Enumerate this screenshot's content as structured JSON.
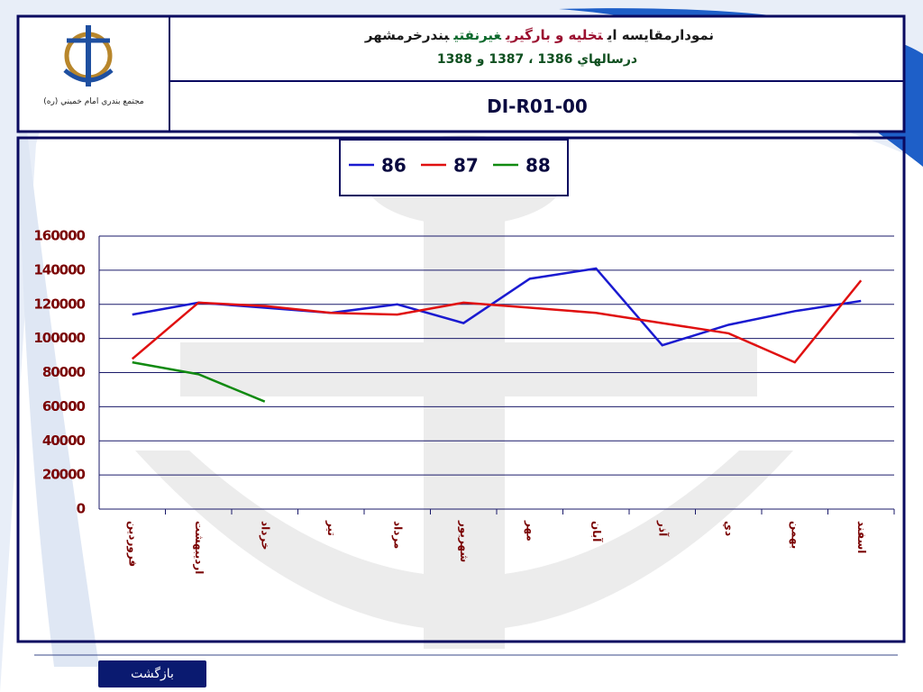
{
  "header": {
    "organization": "مجتمع بندري امام خميني (ره)",
    "title_segments": [
      {
        "text": "نمودارمقايسه اي",
        "color": "#1a1a1a"
      },
      {
        "text": "تخليه و بارگيري",
        "color": "#9b1030"
      },
      {
        "text": "غيرنفتي",
        "color": "#0f6b2f"
      },
      {
        "text": "بندرخرمشهر",
        "color": "#1a1a1a"
      }
    ],
    "subtitle": "درسالهاي 1386 ، 1387 و 1388",
    "code": "DI-R01-00"
  },
  "chart_data": {
    "type": "line",
    "categories": [
      "فروردين",
      "ارديبهشت",
      "خرداد",
      "تير",
      "مرداد",
      "شهريور",
      "مهر",
      "آبان",
      "آذر",
      "دي",
      "بهمن",
      "اسفند"
    ],
    "series": [
      {
        "name": "86",
        "color": "#1a1ad0",
        "values": [
          114000,
          121000,
          118000,
          115000,
          120000,
          109000,
          135000,
          141000,
          96000,
          108000,
          116000,
          122000
        ]
      },
      {
        "name": "87",
        "color": "#e01010",
        "values": [
          88000,
          121000,
          119000,
          115000,
          114000,
          121000,
          118000,
          115000,
          109000,
          103000,
          86000,
          134000
        ]
      },
      {
        "name": "88",
        "color": "#118a11",
        "values": [
          86000,
          79000,
          63000,
          null,
          null,
          null,
          null,
          null,
          null,
          null,
          null,
          null
        ]
      }
    ],
    "ylim": [
      0,
      160000
    ],
    "yticks": [
      0,
      20000,
      40000,
      60000,
      80000,
      100000,
      120000,
      140000,
      160000
    ],
    "grid": true
  },
  "footer": {
    "back_button": "بازگشت"
  }
}
